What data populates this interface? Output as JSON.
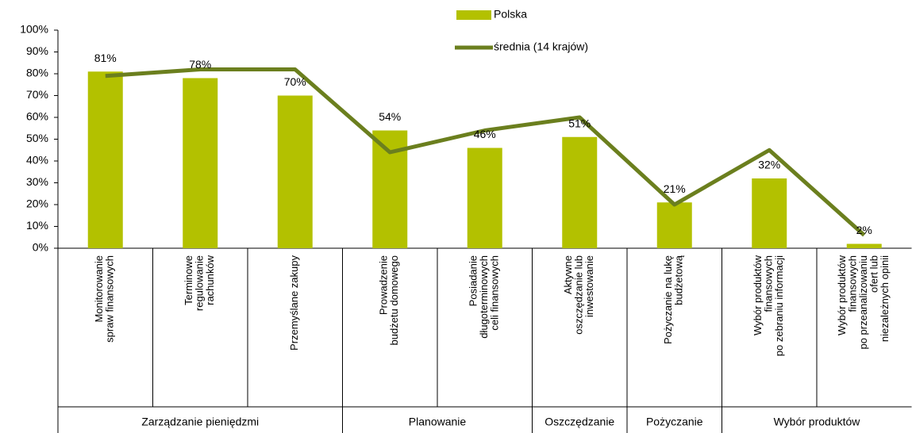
{
  "chart_data": {
    "type": "bar_line",
    "groups": [
      {
        "name": "Zarządzanie pieniędzmi",
        "categories": [
          "Monitorowanie\nspraw finansowych",
          "Terminowe\nregulowanie\nrachunków",
          "Przemyślane zakupy"
        ]
      },
      {
        "name": "Planowanie",
        "categories": [
          "Prowadzenie\nbudżetu domowego",
          "Posiadanie\ndługoterminowych\nceli finansowych"
        ]
      },
      {
        "name": "Oszczędzanie",
        "categories": [
          "Aktywne\noszczędzanie lub\ninwestowanie"
        ]
      },
      {
        "name": "Pożyczanie",
        "categories": [
          "Pożyczanie na lukę\nbudżetową"
        ]
      },
      {
        "name": "Wybór produktów",
        "categories": [
          "Wybór produktów\nfinansowych\npo zebraniu informacji",
          "Wybór produktów\nfinansowych\npo przeanalizowaniu\nofert lub\nniezależnych opinii"
        ]
      }
    ],
    "series": [
      {
        "name": "Polska",
        "type": "bar",
        "color": "#b3c100",
        "values": [
          81,
          78,
          70,
          54,
          46,
          51,
          21,
          32,
          2
        ],
        "value_labels": [
          "81%",
          "78%",
          "70%",
          "54%",
          "46%",
          "51%",
          "21%",
          "32%",
          "2%"
        ]
      },
      {
        "name": "średnia (14 krajów)",
        "type": "line",
        "color": "#6b7f1e",
        "values": [
          79,
          82,
          82,
          44,
          54,
          60,
          20,
          45,
          6
        ]
      }
    ],
    "ylim": [
      0,
      100
    ],
    "yticks": [
      {
        "value": 0,
        "label": "0%"
      },
      {
        "value": 10,
        "label": "10%"
      },
      {
        "value": 20,
        "label": "20%"
      },
      {
        "value": 30,
        "label": "30%"
      },
      {
        "value": 40,
        "label": "40%"
      },
      {
        "value": 50,
        "label": "50%"
      },
      {
        "value": 60,
        "label": "60%"
      },
      {
        "value": 70,
        "label": "70%"
      },
      {
        "value": 80,
        "label": "80%"
      },
      {
        "value": 90,
        "label": "90%"
      },
      {
        "value": 100,
        "label": "100%"
      }
    ],
    "legend": "top"
  }
}
